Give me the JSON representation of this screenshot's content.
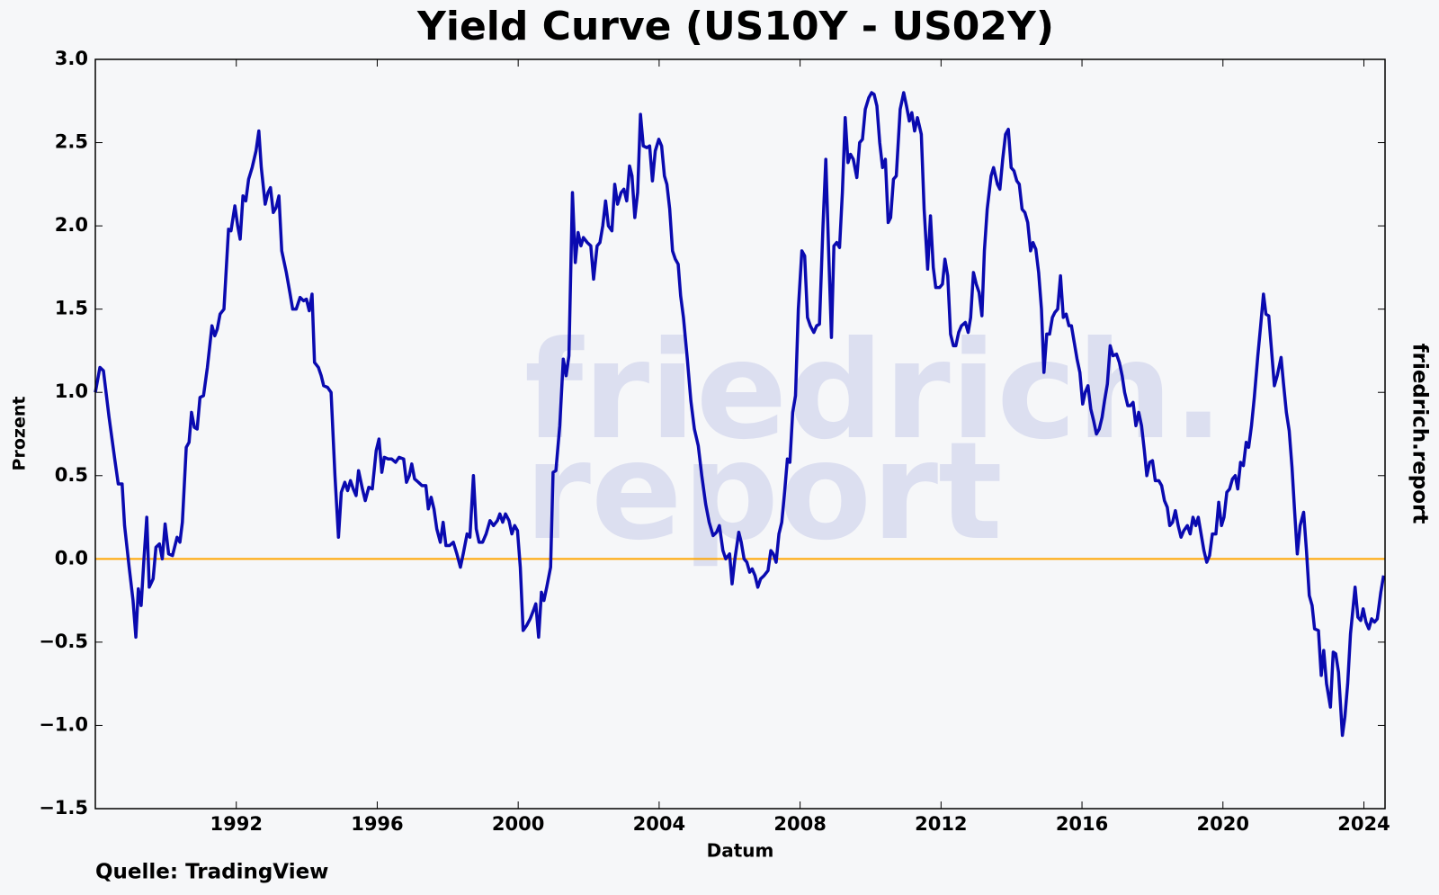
{
  "chart_data": {
    "type": "line",
    "title": "Yield Curve (US10Y - US02Y)",
    "x_label": "Datum",
    "y_label": "Prozent",
    "source": "Quelle: TradingView",
    "side_label": "friedrich.report",
    "watermark": [
      "friedrich.",
      "report"
    ],
    "color": "#0a0ab0",
    "reference_line": {
      "value": 0,
      "color": "#ffa500"
    },
    "xlim": [
      1988,
      2024.6
    ],
    "xticks": [
      1992,
      1996,
      2000,
      2004,
      2008,
      2012,
      2016,
      2020,
      2024
    ],
    "ylim": [
      -1.5,
      3
    ],
    "yticks": [
      {
        "value": -1.5,
        "label": "−1.5"
      },
      {
        "value": -1,
        "label": "−1.0"
      },
      {
        "value": -0.5,
        "label": "−0.5"
      },
      {
        "value": 0,
        "label": "0.0"
      },
      {
        "value": 0.5,
        "label": "0.5"
      },
      {
        "value": 1,
        "label": "1.0"
      },
      {
        "value": 1.5,
        "label": "1.5"
      },
      {
        "value": 2,
        "label": "2.0"
      },
      {
        "value": 2.5,
        "label": "2.5"
      },
      {
        "value": 3,
        "label": "3.0"
      }
    ],
    "x": [
      1988.0,
      1988.13,
      1988.23,
      1988.39,
      1988.55,
      1988.65,
      1988.76,
      1988.83,
      1988.96,
      1989.07,
      1989.15,
      1989.22,
      1989.3,
      1989.38,
      1989.46,
      1989.53,
      1989.64,
      1989.72,
      1989.82,
      1989.9,
      1989.98,
      1990.08,
      1990.19,
      1990.32,
      1990.4,
      1990.47,
      1990.58,
      1990.66,
      1990.73,
      1990.81,
      1990.89,
      1990.97,
      1991.07,
      1991.18,
      1991.31,
      1991.39,
      1991.46,
      1991.54,
      1991.65,
      1991.78,
      1991.85,
      1991.96,
      1992.04,
      1992.11,
      1992.19,
      1992.27,
      1992.35,
      1992.45,
      1992.56,
      1992.64,
      1992.71,
      1992.82,
      1992.9,
      1992.97,
      1993.05,
      1993.13,
      1993.21,
      1993.29,
      1993.42,
      1993.52,
      1993.6,
      1993.7,
      1993.81,
      1993.91,
      1993.99,
      1994.07,
      1994.15,
      1994.22,
      1994.33,
      1994.41,
      1994.48,
      1994.59,
      1994.69,
      1994.8,
      1994.9,
      1994.98,
      1995.08,
      1995.16,
      1995.24,
      1995.32,
      1995.4,
      1995.47,
      1995.58,
      1995.66,
      1995.76,
      1995.86,
      1995.97,
      1996.05,
      1996.13,
      1996.2,
      1996.31,
      1996.41,
      1996.52,
      1996.62,
      1996.75,
      1996.83,
      1996.91,
      1996.98,
      1997.06,
      1997.17,
      1997.27,
      1997.38,
      1997.45,
      1997.53,
      1997.61,
      1997.69,
      1997.79,
      1997.87,
      1997.95,
      1998.05,
      1998.16,
      1998.26,
      1998.36,
      1998.44,
      1998.55,
      1998.63,
      1998.73,
      1998.81,
      1998.89,
      1998.99,
      1999.09,
      1999.2,
      1999.3,
      1999.41,
      1999.48,
      1999.56,
      1999.64,
      1999.74,
      1999.82,
      1999.9,
      1999.98,
      2000.06,
      2000.14,
      2000.24,
      2000.34,
      2000.45,
      2000.5,
      2000.58,
      2000.66,
      2000.73,
      2000.81,
      2000.92,
      2000.99,
      2001.07,
      2001.18,
      2001.28,
      2001.36,
      2001.44,
      2001.54,
      2001.62,
      2001.7,
      2001.78,
      2001.85,
      2001.96,
      2002.06,
      2002.14,
      2002.24,
      2002.32,
      2002.4,
      2002.48,
      2002.56,
      2002.66,
      2002.74,
      2002.82,
      2002.92,
      2003.0,
      2003.08,
      2003.16,
      2003.23,
      2003.31,
      2003.39,
      2003.47,
      2003.55,
      2003.65,
      2003.73,
      2003.81,
      2003.89,
      2003.99,
      2004.07,
      2004.15,
      2004.22,
      2004.3,
      2004.38,
      2004.46,
      2004.54,
      2004.61,
      2004.69,
      2004.8,
      2004.9,
      2005.0,
      2005.11,
      2005.21,
      2005.32,
      2005.42,
      2005.53,
      2005.63,
      2005.71,
      2005.81,
      2005.89,
      2006.0,
      2006.07,
      2006.15,
      2006.26,
      2006.33,
      2006.41,
      2006.49,
      2006.57,
      2006.64,
      2006.72,
      2006.8,
      2006.88,
      2006.98,
      2007.09,
      2007.17,
      2007.24,
      2007.32,
      2007.4,
      2007.48,
      2007.56,
      2007.64,
      2007.71,
      2007.79,
      2007.87,
      2007.95,
      2008.05,
      2008.13,
      2008.21,
      2008.29,
      2008.39,
      2008.47,
      2008.55,
      2008.65,
      2008.73,
      2008.81,
      2008.89,
      2008.96,
      2009.04,
      2009.12,
      2009.2,
      2009.28,
      2009.36,
      2009.43,
      2009.51,
      2009.61,
      2009.69,
      2009.77,
      2009.85,
      2009.95,
      2010.03,
      2010.1,
      2010.18,
      2010.26,
      2010.34,
      2010.42,
      2010.5,
      2010.57,
      2010.65,
      2010.73,
      2010.84,
      2010.94,
      2011.02,
      2011.1,
      2011.17,
      2011.25,
      2011.33,
      2011.44,
      2011.52,
      2011.62,
      2011.7,
      2011.78,
      2011.85,
      2011.96,
      2012.04,
      2012.11,
      2012.19,
      2012.27,
      2012.35,
      2012.42,
      2012.5,
      2012.58,
      2012.69,
      2012.77,
      2012.84,
      2012.92,
      2013.0,
      2013.08,
      2013.16,
      2013.23,
      2013.31,
      2013.42,
      2013.49,
      2013.6,
      2013.67,
      2013.75,
      2013.83,
      2013.91,
      2013.99,
      2014.07,
      2014.15,
      2014.22,
      2014.3,
      2014.38,
      2014.46,
      2014.54,
      2014.61,
      2014.69,
      2014.77,
      2014.85,
      2014.92,
      2015.0,
      2015.08,
      2015.16,
      2015.23,
      2015.31,
      2015.39,
      2015.47,
      2015.55,
      2015.63,
      2015.7,
      2015.78,
      2015.86,
      2015.94,
      2016.02,
      2016.09,
      2016.17,
      2016.25,
      2016.33,
      2016.41,
      2016.49,
      2016.57,
      2016.64,
      2016.72,
      2016.8,
      2016.88,
      2016.98,
      2017.06,
      2017.14,
      2017.21,
      2017.3,
      2017.37,
      2017.45,
      2017.53,
      2017.61,
      2017.69,
      2017.77,
      2017.84,
      2017.92,
      2018.0,
      2018.08,
      2018.18,
      2018.26,
      2018.34,
      2018.42,
      2018.49,
      2018.57,
      2018.65,
      2018.73,
      2018.81,
      2018.89,
      2018.99,
      2019.07,
      2019.15,
      2019.23,
      2019.3,
      2019.38,
      2019.46,
      2019.54,
      2019.62,
      2019.7,
      2019.8,
      2019.88,
      2019.96,
      2020.03,
      2020.11,
      2020.19,
      2020.27,
      2020.35,
      2020.42,
      2020.5,
      2020.58,
      2020.66,
      2020.73,
      2020.81,
      2020.89,
      2020.99,
      2021.07,
      2021.15,
      2021.22,
      2021.3,
      2021.38,
      2021.46,
      2021.54,
      2021.65,
      2021.72,
      2021.8,
      2021.88,
      2021.96,
      2022.03,
      2022.11,
      2022.19,
      2022.29,
      2022.37,
      2022.45,
      2022.53,
      2022.6,
      2022.71,
      2022.79,
      2022.86,
      2022.94,
      2023.05,
      2023.13,
      2023.2,
      2023.28,
      2023.39,
      2023.46,
      2023.54,
      2023.62,
      2023.75,
      2023.83,
      2023.91,
      2023.98,
      2024.06,
      2024.14,
      2024.22,
      2024.3,
      2024.38,
      2024.48,
      2024.56
    ],
    "values": [
      1.0,
      1.15,
      1.13,
      0.85,
      0.6,
      0.45,
      0.45,
      0.2,
      -0.05,
      -0.25,
      -0.47,
      -0.18,
      -0.28,
      0.0,
      0.25,
      -0.17,
      -0.12,
      0.07,
      0.09,
      0.0,
      0.21,
      0.03,
      0.02,
      0.13,
      0.1,
      0.22,
      0.67,
      0.7,
      0.88,
      0.79,
      0.78,
      0.97,
      0.98,
      1.15,
      1.4,
      1.34,
      1.38,
      1.47,
      1.5,
      1.98,
      1.97,
      2.12,
      2.0,
      1.92,
      2.18,
      2.15,
      2.28,
      2.35,
      2.45,
      2.57,
      2.35,
      2.13,
      2.2,
      2.23,
      2.08,
      2.11,
      2.18,
      1.85,
      1.72,
      1.6,
      1.5,
      1.5,
      1.57,
      1.55,
      1.56,
      1.49,
      1.59,
      1.18,
      1.15,
      1.1,
      1.04,
      1.03,
      1.0,
      0.5,
      0.13,
      0.4,
      0.46,
      0.41,
      0.47,
      0.42,
      0.38,
      0.53,
      0.42,
      0.35,
      0.43,
      0.42,
      0.65,
      0.72,
      0.52,
      0.61,
      0.6,
      0.6,
      0.58,
      0.61,
      0.6,
      0.46,
      0.5,
      0.57,
      0.48,
      0.46,
      0.44,
      0.44,
      0.3,
      0.37,
      0.3,
      0.18,
      0.1,
      0.22,
      0.08,
      0.08,
      0.1,
      0.03,
      -0.05,
      0.03,
      0.15,
      0.13,
      0.5,
      0.18,
      0.1,
      0.1,
      0.15,
      0.23,
      0.2,
      0.23,
      0.27,
      0.22,
      0.27,
      0.23,
      0.15,
      0.2,
      0.17,
      -0.05,
      -0.43,
      -0.4,
      -0.36,
      -0.3,
      -0.27,
      -0.47,
      -0.2,
      -0.25,
      -0.17,
      -0.05,
      0.52,
      0.53,
      0.8,
      1.2,
      1.1,
      1.22,
      2.2,
      1.78,
      1.96,
      1.88,
      1.93,
      1.9,
      1.88,
      1.68,
      1.88,
      1.9,
      2.0,
      2.15,
      2.0,
      1.97,
      2.25,
      2.13,
      2.2,
      2.22,
      2.15,
      2.36,
      2.3,
      2.05,
      2.2,
      2.67,
      2.48,
      2.47,
      2.48,
      2.27,
      2.45,
      2.52,
      2.48,
      2.3,
      2.25,
      2.1,
      1.85,
      1.8,
      1.77,
      1.58,
      1.45,
      1.2,
      0.95,
      0.78,
      0.68,
      0.5,
      0.33,
      0.22,
      0.14,
      0.16,
      0.2,
      0.05,
      0.0,
      0.03,
      -0.15,
      0.0,
      0.16,
      0.1,
      0.0,
      -0.02,
      -0.08,
      -0.06,
      -0.1,
      -0.17,
      -0.12,
      -0.1,
      -0.07,
      0.05,
      0.03,
      -0.02,
      0.15,
      0.22,
      0.4,
      0.6,
      0.58,
      0.88,
      0.98,
      1.5,
      1.85,
      1.82,
      1.45,
      1.4,
      1.36,
      1.4,
      1.41,
      2.0,
      2.4,
      1.85,
      1.33,
      1.88,
      1.9,
      1.87,
      2.2,
      2.65,
      2.38,
      2.43,
      2.4,
      2.29,
      2.5,
      2.52,
      2.7,
      2.77,
      2.8,
      2.79,
      2.72,
      2.5,
      2.35,
      2.4,
      2.02,
      2.05,
      2.28,
      2.3,
      2.7,
      2.8,
      2.72,
      2.63,
      2.68,
      2.57,
      2.65,
      2.55,
      2.1,
      1.74,
      2.06,
      1.75,
      1.63,
      1.63,
      1.65,
      1.8,
      1.7,
      1.35,
      1.28,
      1.28,
      1.36,
      1.4,
      1.42,
      1.36,
      1.45,
      1.72,
      1.65,
      1.6,
      1.46,
      1.85,
      2.1,
      2.3,
      2.35,
      2.25,
      2.22,
      2.4,
      2.55,
      2.58,
      2.35,
      2.33,
      2.27,
      2.25,
      2.1,
      2.08,
      2.02,
      1.85,
      1.9,
      1.86,
      1.72,
      1.5,
      1.12,
      1.35,
      1.35,
      1.45,
      1.48,
      1.5,
      1.7,
      1.45,
      1.47,
      1.4,
      1.4,
      1.3,
      1.2,
      1.12,
      0.93,
      1.0,
      1.04,
      0.9,
      0.83,
      0.75,
      0.78,
      0.85,
      0.95,
      1.05,
      1.28,
      1.22,
      1.23,
      1.18,
      1.1,
      1.0,
      0.92,
      0.92,
      0.94,
      0.8,
      0.88,
      0.8,
      0.65,
      0.5,
      0.58,
      0.59,
      0.47,
      0.47,
      0.44,
      0.35,
      0.31,
      0.2,
      0.22,
      0.29,
      0.2,
      0.13,
      0.17,
      0.2,
      0.15,
      0.25,
      0.2,
      0.25,
      0.15,
      0.05,
      -0.02,
      0.02,
      0.15,
      0.15,
      0.34,
      0.2,
      0.25,
      0.4,
      0.42,
      0.48,
      0.5,
      0.42,
      0.58,
      0.56,
      0.7,
      0.67,
      0.8,
      0.97,
      1.22,
      1.4,
      1.59,
      1.47,
      1.46,
      1.25,
      1.04,
      1.1,
      1.21,
      1.05,
      0.88,
      0.77,
      0.55,
      0.3,
      0.03,
      0.2,
      0.28,
      0.05,
      -0.22,
      -0.28,
      -0.42,
      -0.43,
      -0.7,
      -0.55,
      -0.75,
      -0.89,
      -0.56,
      -0.57,
      -0.68,
      -1.06,
      -0.95,
      -0.75,
      -0.45,
      -0.17,
      -0.35,
      -0.37,
      -0.3,
      -0.38,
      -0.42,
      -0.36,
      -0.38,
      -0.36,
      -0.2,
      -0.1
    ]
  }
}
